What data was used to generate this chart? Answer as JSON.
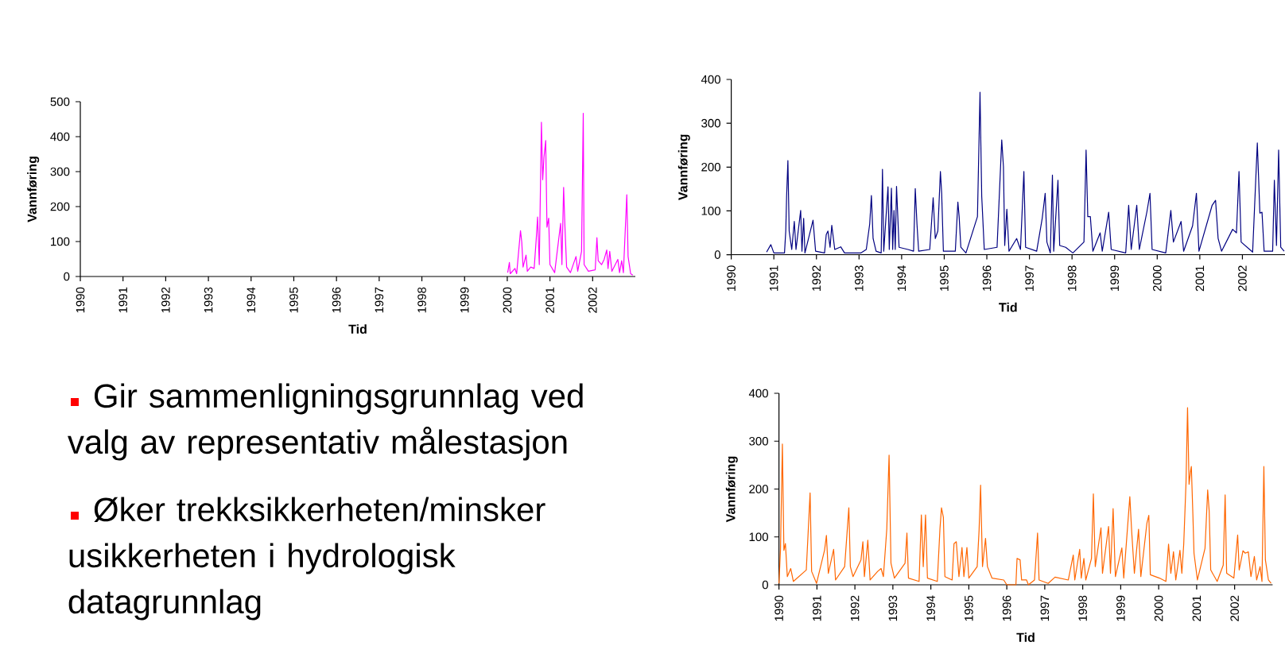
{
  "chart_data": [
    {
      "type": "line",
      "xlabel": "Tid",
      "ylabel": "Vannføring",
      "color": "#ff00ff",
      "xlim": [
        1990,
        2003
      ],
      "ylim": [
        0,
        500
      ],
      "xticks": [
        1990,
        1991,
        1992,
        1993,
        1994,
        1995,
        1996,
        1997,
        1998,
        1999,
        2000,
        2001,
        2002
      ],
      "yticks": [
        0,
        100,
        200,
        300,
        400,
        500
      ],
      "x": [
        2000.01,
        2000.05,
        2000.07,
        2000.18,
        2000.22,
        2000.31,
        2000.34,
        2000.37,
        2000.44,
        2000.47,
        2000.55,
        2000.63,
        2000.68,
        2000.71,
        2000.75,
        2000.8,
        2000.83,
        2000.86,
        2000.9,
        2000.93,
        2000.97,
        2001.0,
        2001.11,
        2001.25,
        2001.28,
        2001.32,
        2001.35,
        2001.39,
        2001.48,
        2001.61,
        2001.65,
        2001.74,
        2001.78,
        2001.8,
        2001.9,
        2002.06,
        2002.1,
        2002.13,
        2002.21,
        2002.27,
        2002.33,
        2002.36,
        2002.4,
        2002.45,
        2002.59,
        2002.63,
        2002.68,
        2002.72,
        2002.8,
        2002.83,
        2002.89,
        2002.94
      ],
      "values": [
        11,
        40,
        8,
        23,
        8,
        131,
        98,
        27,
        61,
        15,
        27,
        23,
        110,
        170,
        34,
        441,
        277,
        341,
        389,
        141,
        167,
        34,
        11,
        152,
        34,
        255,
        145,
        27,
        11,
        57,
        15,
        72,
        467,
        34,
        15,
        19,
        111,
        45,
        34,
        49,
        76,
        23,
        72,
        15,
        49,
        11,
        45,
        11,
        234,
        57,
        8,
        4
      ],
      "annotations": [
        "Gir sammenligningsgrunnlag ved valg av representativ målestasjon",
        "Øker trekksikkerheten/minsker usikkerheten i hydrologisk datagrunnlag"
      ]
    },
    {
      "type": "line",
      "xlabel": "Tid",
      "ylabel": "Vannføring",
      "color": "#000080",
      "xlim": [
        1990,
        2003
      ],
      "ylim": [
        0,
        400
      ],
      "xticks": [
        1990,
        1991,
        1992,
        1993,
        1994,
        1995,
        1996,
        1997,
        1998,
        1999,
        2000,
        2001,
        2002
      ],
      "yticks": [
        0,
        100,
        200,
        300,
        400
      ],
      "x": [
        1990.83,
        1990.93,
        1991.0,
        1991.25,
        1991.28,
        1991.3,
        1991.33,
        1991.36,
        1991.42,
        1991.48,
        1991.52,
        1991.63,
        1991.66,
        1991.7,
        1991.73,
        1991.92,
        1991.98,
        1992.19,
        1992.23,
        1992.27,
        1992.32,
        1992.36,
        1992.43,
        1992.57,
        1992.66,
        1993.04,
        1993.17,
        1993.25,
        1993.29,
        1993.33,
        1993.4,
        1993.52,
        1993.55,
        1993.58,
        1993.68,
        1993.71,
        1993.76,
        1993.79,
        1993.82,
        1993.85,
        1993.88,
        1993.94,
        1994.15,
        1994.28,
        1994.32,
        1994.36,
        1994.4,
        1994.66,
        1994.74,
        1994.79,
        1994.85,
        1994.91,
        1994.94,
        1994.98,
        1995.26,
        1995.32,
        1995.35,
        1995.39,
        1995.51,
        1995.78,
        1995.84,
        1995.88,
        1995.94,
        1996.24,
        1996.35,
        1996.39,
        1996.42,
        1996.47,
        1996.52,
        1996.7,
        1996.79,
        1996.87,
        1996.91,
        1997.17,
        1997.3,
        1997.37,
        1997.41,
        1997.49,
        1997.54,
        1997.57,
        1997.67,
        1997.71,
        1997.85,
        1998.02,
        1998.28,
        1998.33,
        1998.37,
        1998.43,
        1998.49,
        1998.66,
        1998.71,
        1998.86,
        1998.92,
        1999.26,
        1999.33,
        1999.39,
        1999.52,
        1999.58,
        1999.76,
        1999.83,
        1999.88,
        2000.2,
        2000.32,
        2000.38,
        2000.56,
        2000.62,
        2000.83,
        2000.92,
        2000.98,
        2001.29,
        2001.37,
        2001.43,
        2001.51,
        2001.77,
        2001.86,
        2001.92,
        2001.97,
        2002.24,
        2002.35,
        2002.41,
        2002.46,
        2002.51,
        2002.71,
        2002.75,
        2002.8,
        2002.85,
        2002.9,
        2002.98
      ],
      "values": [
        6,
        23,
        4,
        4,
        54,
        134,
        215,
        54,
        12,
        76,
        12,
        101,
        8,
        83,
        4,
        79,
        8,
        4,
        46,
        54,
        17,
        67,
        12,
        18,
        4,
        4,
        12,
        70,
        135,
        37,
        8,
        4,
        195,
        8,
        155,
        12,
        152,
        12,
        101,
        12,
        156,
        17,
        12,
        8,
        151,
        70,
        8,
        12,
        130,
        37,
        54,
        190,
        140,
        8,
        8,
        120,
        87,
        17,
        4,
        87,
        371,
        134,
        12,
        17,
        262,
        201,
        21,
        104,
        8,
        37,
        12,
        190,
        17,
        8,
        83,
        140,
        29,
        4,
        182,
        8,
        170,
        21,
        17,
        4,
        29,
        239,
        87,
        87,
        8,
        50,
        8,
        97,
        12,
        4,
        113,
        12,
        113,
        12,
        99,
        140,
        12,
        4,
        101,
        29,
        76,
        8,
        66,
        140,
        8,
        113,
        124,
        37,
        8,
        58,
        50,
        190,
        29,
        6,
        255,
        95,
        97,
        8,
        8,
        170,
        21,
        239,
        17,
        8
      ]
    },
    {
      "type": "line",
      "xlabel": "Tid",
      "ylabel": "Vannføring",
      "color": "#ff6600",
      "xlim": [
        1990,
        2003
      ],
      "ylim": [
        0,
        400
      ],
      "xticks": [
        1990,
        1991,
        1992,
        1993,
        1994,
        1995,
        1996,
        1997,
        1998,
        1999,
        2000,
        2001,
        2002
      ],
      "yticks": [
        0,
        100,
        200,
        300,
        400
      ],
      "x": [
        1990.0,
        1990.04,
        1990.09,
        1990.13,
        1990.17,
        1990.22,
        1990.31,
        1990.38,
        1990.72,
        1990.82,
        1990.86,
        1990.99,
        1991.2,
        1991.25,
        1991.3,
        1991.44,
        1991.49,
        1991.73,
        1991.84,
        1991.88,
        1991.95,
        1992.16,
        1992.21,
        1992.25,
        1992.34,
        1992.4,
        1992.6,
        1992.69,
        1992.75,
        1992.84,
        1992.9,
        1992.95,
        1993.04,
        1993.32,
        1993.37,
        1993.41,
        1993.69,
        1993.75,
        1993.8,
        1993.86,
        1993.91,
        1994.17,
        1994.24,
        1994.28,
        1994.33,
        1994.37,
        1994.56,
        1994.61,
        1994.67,
        1994.74,
        1994.82,
        1994.87,
        1994.95,
        1995.0,
        1995.22,
        1995.27,
        1995.31,
        1995.36,
        1995.44,
        1995.49,
        1995.61,
        1995.92,
        1996.0,
        1996.24,
        1996.27,
        1996.35,
        1996.39,
        1996.52,
        1996.57,
        1996.73,
        1996.81,
        1996.85,
        1997.09,
        1997.27,
        1997.62,
        1997.75,
        1997.79,
        1997.92,
        1997.96,
        1998.03,
        1998.08,
        1998.23,
        1998.28,
        1998.33,
        1998.48,
        1998.52,
        1998.68,
        1998.73,
        1998.8,
        1998.86,
        1999.03,
        1999.08,
        1999.24,
        1999.29,
        1999.36,
        1999.47,
        1999.53,
        1999.69,
        1999.74,
        1999.78,
        2000.02,
        2000.19,
        2000.26,
        2000.32,
        2000.39,
        2000.45,
        2000.56,
        2000.61,
        2000.66,
        2000.72,
        2000.76,
        2000.8,
        2000.84,
        2000.86,
        2000.9,
        2000.93,
        2001.02,
        2001.22,
        2001.29,
        2001.33,
        2001.37,
        2001.54,
        2001.7,
        2001.75,
        2001.79,
        2001.98,
        2002.08,
        2002.12,
        2002.22,
        2002.28,
        2002.36,
        2002.43,
        2002.52,
        2002.58,
        2002.67,
        2002.72,
        2002.77,
        2002.81,
        2002.89,
        2002.96
      ],
      "values": [
        3,
        72,
        294,
        72,
        86,
        17,
        34,
        7,
        31,
        192,
        28,
        3,
        72,
        103,
        24,
        74,
        10,
        38,
        161,
        38,
        17,
        52,
        90,
        17,
        93,
        10,
        28,
        34,
        17,
        117,
        271,
        45,
        14,
        45,
        108,
        14,
        7,
        146,
        38,
        146,
        14,
        7,
        117,
        161,
        141,
        17,
        10,
        86,
        90,
        17,
        78,
        17,
        78,
        14,
        38,
        114,
        208,
        38,
        97,
        38,
        14,
        10,
        0,
        0,
        55,
        52,
        10,
        10,
        0,
        10,
        108,
        10,
        3,
        16,
        10,
        62,
        10,
        74,
        14,
        55,
        10,
        55,
        190,
        38,
        119,
        24,
        122,
        24,
        159,
        17,
        77,
        14,
        184,
        110,
        24,
        116,
        17,
        129,
        145,
        21,
        14,
        7,
        85,
        24,
        69,
        10,
        72,
        24,
        86,
        214,
        370,
        210,
        238,
        247,
        148,
        66,
        10,
        76,
        198,
        154,
        31,
        7,
        41,
        188,
        24,
        14,
        104,
        31,
        71,
        66,
        69,
        17,
        59,
        10,
        38,
        7,
        247,
        52,
        10,
        3
      ]
    }
  ]
}
